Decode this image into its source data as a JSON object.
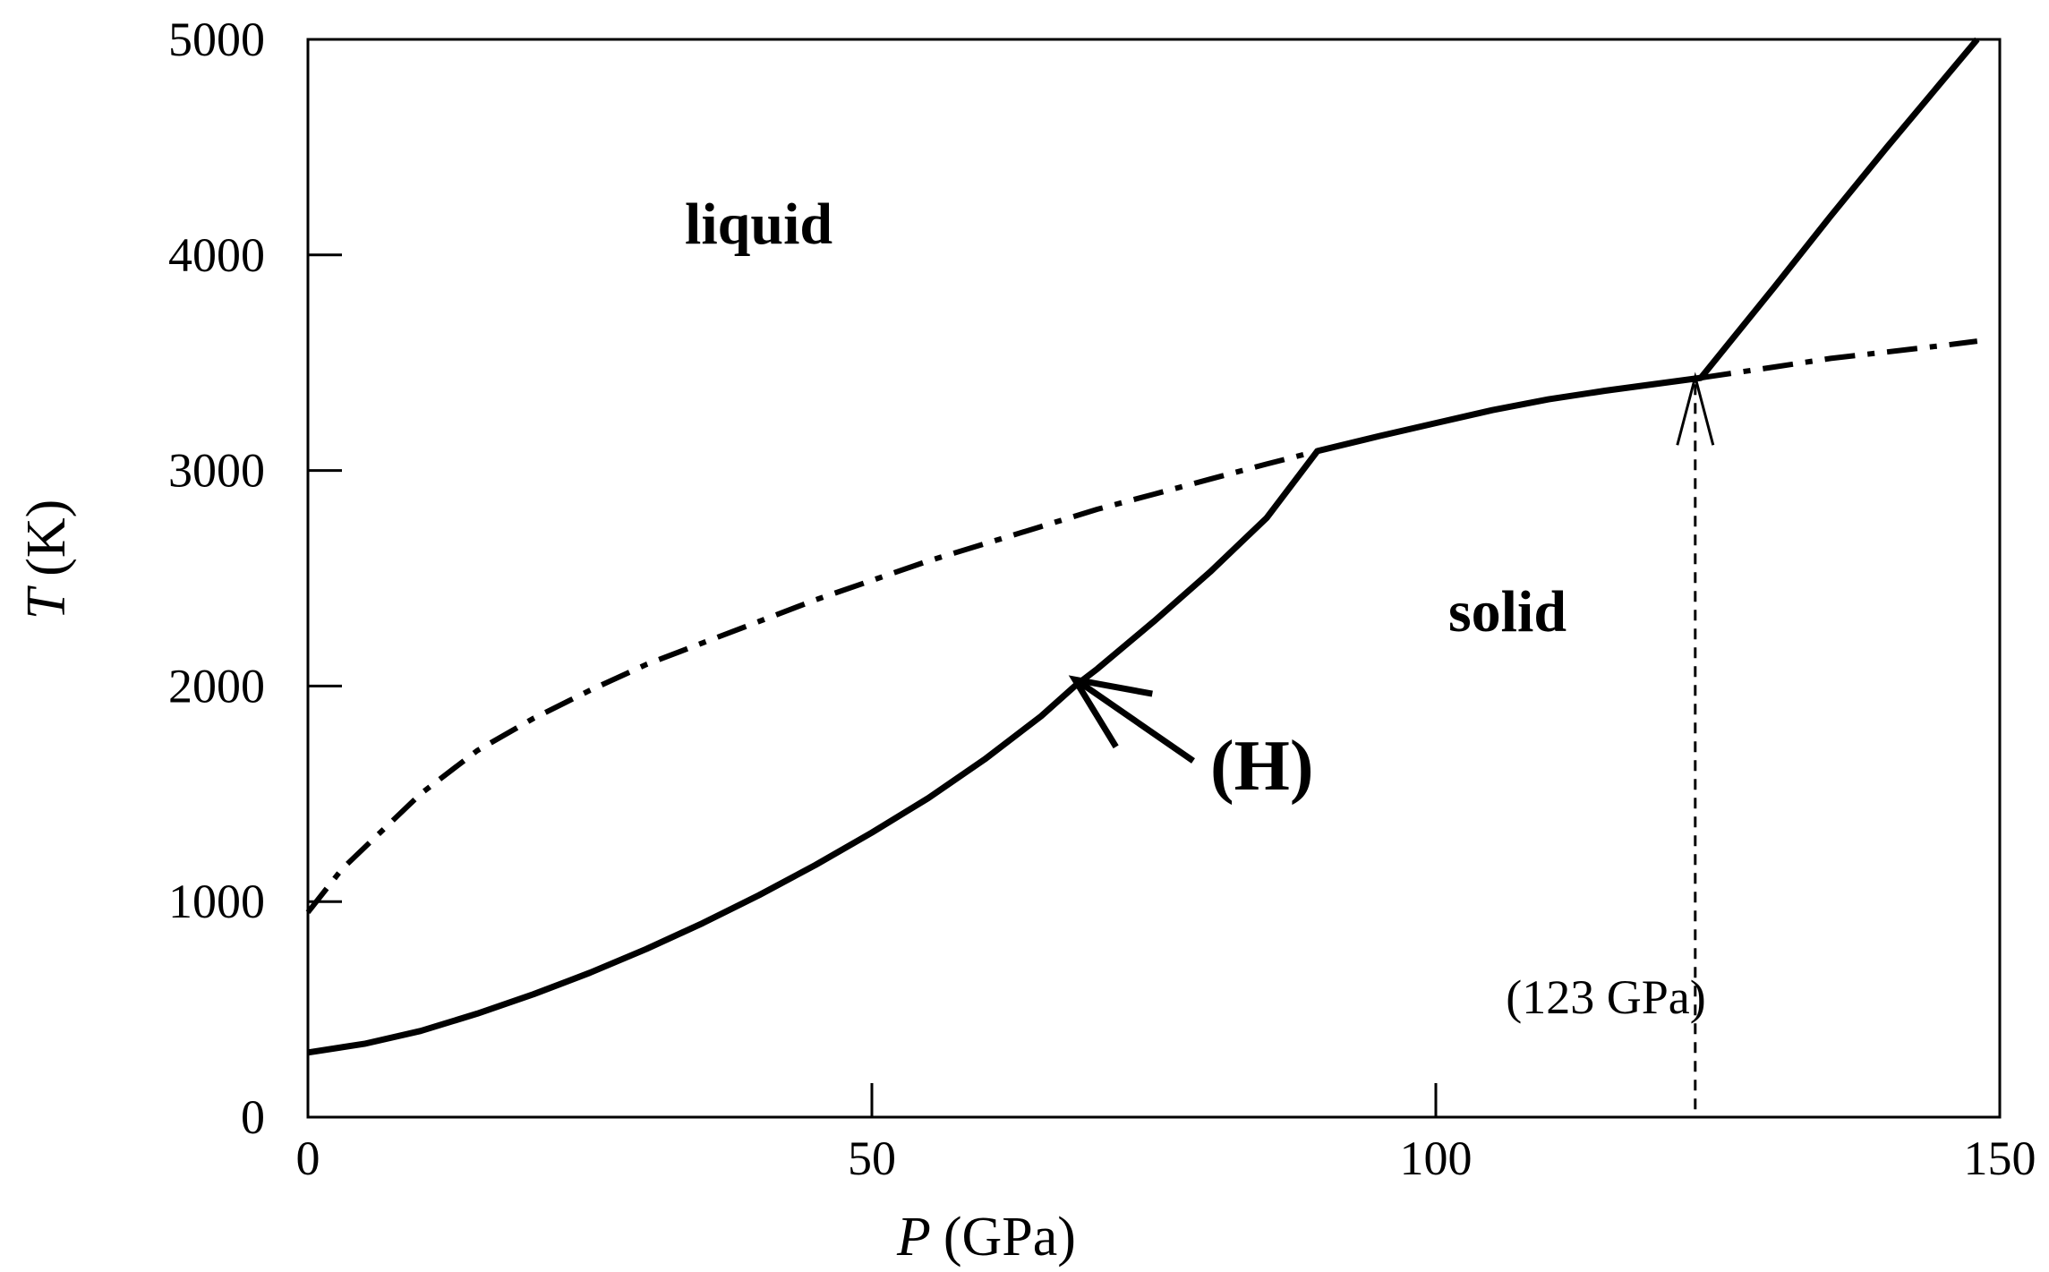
{
  "chart_data": {
    "type": "line",
    "title": "",
    "xlabel": {
      "symbol": "P",
      "unit": "(GPa)"
    },
    "ylabel": {
      "symbol": "T",
      "unit": "(K)"
    },
    "xlim": [
      0,
      150
    ],
    "ylim": [
      0,
      5000
    ],
    "x_ticks": [
      0,
      50,
      100,
      150
    ],
    "y_ticks": [
      0,
      1000,
      2000,
      3000,
      4000,
      5000
    ],
    "grid": false,
    "legend": "none",
    "series": [
      {
        "style": "solid",
        "x": [
          0,
          5,
          10,
          15,
          20,
          25,
          30,
          35,
          40,
          45,
          50,
          55,
          60,
          65,
          68,
          70,
          75,
          80,
          85,
          89.5,
          95,
          100,
          105,
          110,
          115,
          123.5,
          130,
          135,
          140,
          148
        ],
        "y": [
          300,
          340,
          400,
          480,
          570,
          670,
          780,
          900,
          1030,
          1170,
          1320,
          1480,
          1660,
          1860,
          2000,
          2080,
          2300,
          2530,
          2780,
          3090,
          3160,
          3220,
          3280,
          3330,
          3370,
          3430,
          3850,
          4180,
          4500,
          5000
        ]
      },
      {
        "style": "dash-dot",
        "x": [
          0,
          3,
          7,
          10,
          15,
          20,
          25,
          30,
          35,
          40,
          45,
          50,
          55,
          60,
          65,
          70,
          75,
          80,
          85,
          89.5
        ],
        "y": [
          950,
          1150,
          1350,
          1500,
          1700,
          1850,
          1980,
          2100,
          2200,
          2300,
          2400,
          2490,
          2580,
          2660,
          2740,
          2820,
          2890,
          2960,
          3030,
          3090
        ]
      },
      {
        "style": "dash-dot",
        "x": [
          123.5,
          130,
          135,
          140,
          145,
          148
        ],
        "y": [
          3430,
          3480,
          3520,
          3550,
          3580,
          3600
        ]
      }
    ],
    "annotations": {
      "region_liquid": "liquid",
      "region_solid": "solid",
      "curve_label": "(H)",
      "curve_label_points_to": [
        68,
        2030
      ],
      "vertical_marker_x": 123,
      "vertical_marker_label": "(123 GPa)"
    }
  }
}
